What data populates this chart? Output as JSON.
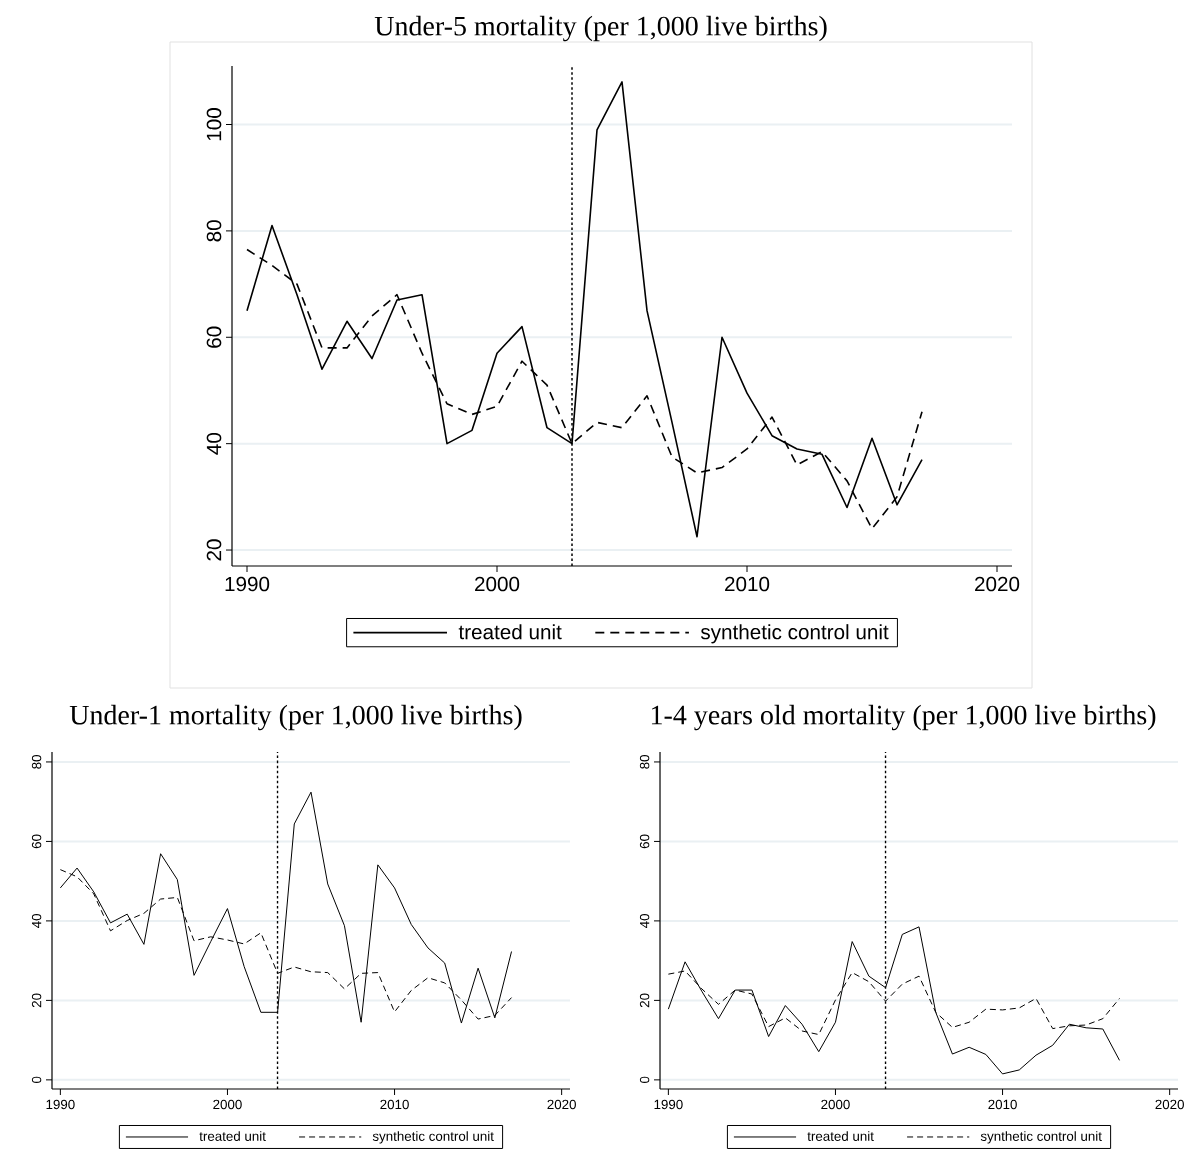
{
  "chart_data": [
    {
      "type": "line",
      "title": "Under-5 mortality (per 1,000 live births)",
      "x": [
        1990,
        1991,
        1992,
        1993,
        1994,
        1995,
        1996,
        1997,
        1998,
        1999,
        2000,
        2001,
        2002,
        2003,
        2004,
        2005,
        2006,
        2007,
        2008,
        2009,
        2010,
        2011,
        2012,
        2013,
        2014,
        2015,
        2016,
        2017
      ],
      "series": [
        {
          "name": "treated unit",
          "color": "#000000",
          "line_style": "solid",
          "values": [
            65,
            81,
            68,
            54,
            63,
            56,
            67,
            68,
            40,
            42.5,
            57,
            62,
            43,
            40,
            99,
            108,
            65,
            44,
            22.5,
            60,
            49.5,
            41.5,
            39,
            38,
            28,
            41,
            28.5,
            37
          ]
        },
        {
          "name": "synthetic control unit",
          "color": "#000000",
          "line_style": "dashed",
          "values": [
            76.5,
            73.5,
            70,
            58,
            58,
            64,
            68,
            57,
            47.5,
            45.5,
            47,
            55.5,
            51,
            40,
            44,
            43,
            49,
            37.5,
            34.5,
            35.5,
            39,
            45,
            36,
            38.5,
            33,
            24,
            30,
            46
          ]
        }
      ],
      "xlim": [
        1989.4,
        2020.6
      ],
      "ylim": [
        17,
        111
      ],
      "xticks": [
        1990,
        2000,
        2010,
        2020
      ],
      "yticks": [
        20,
        40,
        60,
        80,
        100
      ],
      "ref_lines": [
        {
          "axis": "x",
          "value": 2003,
          "line_style": "dotted",
          "color": "#000000"
        }
      ],
      "grid": "y",
      "legend": "bottom"
    },
    {
      "type": "line",
      "title": "Under-1 mortality (per 1,000 live births)",
      "x": [
        1990,
        1991,
        1992,
        1993,
        1994,
        1995,
        1996,
        1997,
        1998,
        1999,
        2000,
        2001,
        2002,
        2003,
        2004,
        2005,
        2006,
        2007,
        2008,
        2009,
        2010,
        2011,
        2012,
        2013,
        2014,
        2015,
        2016,
        2017
      ],
      "series": [
        {
          "name": "treated unit",
          "color": "#000000",
          "line_style": "solid",
          "values": [
            48.3,
            53.3,
            47.3,
            39.5,
            41.7,
            34.1,
            56.9,
            50.4,
            26.3,
            34.8,
            43.1,
            28.5,
            17,
            17,
            64.4,
            72.4,
            49.3,
            38.8,
            14.5,
            54.1,
            48.3,
            39.1,
            33.2,
            29.4,
            14.3,
            28.1,
            15.6,
            32.3
          ]
        },
        {
          "name": "synthetic control unit",
          "color": "#000000",
          "line_style": "dashed",
          "values": [
            52.9,
            51.1,
            46.8,
            37.5,
            40.1,
            41.9,
            45.5,
            45.9,
            35,
            36,
            35.2,
            34.2,
            37,
            26.8,
            28.4,
            27.2,
            27,
            22.9,
            26.8,
            27,
            17.1,
            22.5,
            25.7,
            24.4,
            20.1,
            15.3,
            16.2,
            20.7
          ]
        }
      ],
      "xlim": [
        1989.5,
        2020.5
      ],
      "ylim": [
        -2.3,
        82.5
      ],
      "xticks": [
        1990,
        2000,
        2010,
        2020
      ],
      "yticks": [
        0,
        20,
        40,
        60,
        80
      ],
      "ref_lines": [
        {
          "axis": "x",
          "value": 2003,
          "line_style": "dotted",
          "color": "#000000"
        }
      ],
      "grid": "y",
      "legend": "bottom"
    },
    {
      "type": "line",
      "title": "1-4 years old mortality (per 1,000 live births)",
      "x": [
        1990,
        1991,
        1992,
        1993,
        1994,
        1995,
        1996,
        1997,
        1998,
        1999,
        2000,
        2001,
        2002,
        2003,
        2004,
        2005,
        2006,
        2007,
        2008,
        2009,
        2010,
        2011,
        2012,
        2013,
        2014,
        2015,
        2016,
        2017
      ],
      "series": [
        {
          "name": "treated unit",
          "color": "#000000",
          "line_style": "solid",
          "values": [
            17.8,
            29.7,
            22.3,
            15.4,
            22.6,
            22.6,
            10.9,
            18.7,
            14,
            7.1,
            14.5,
            34.8,
            26.1,
            23.2,
            36.6,
            38.5,
            17,
            6.5,
            8.2,
            6.4,
            1.5,
            2.5,
            6.2,
            8.7,
            14,
            13.1,
            12.8,
            4.9
          ]
        },
        {
          "name": "synthetic control unit",
          "color": "#000000",
          "line_style": "dashed",
          "values": [
            26.6,
            27.4,
            22.9,
            19,
            22.6,
            21.6,
            13.4,
            15.6,
            12.3,
            11.4,
            20.1,
            27,
            24.7,
            19.8,
            24.1,
            26.1,
            17,
            13.2,
            14.5,
            17.8,
            17.6,
            18.1,
            20.5,
            12.9,
            13.6,
            13.8,
            15.4,
            20.5
          ]
        }
      ],
      "xlim": [
        1989.5,
        2020.5
      ],
      "ylim": [
        -2.3,
        82.5
      ],
      "xticks": [
        1990,
        2000,
        2010,
        2020
      ],
      "yticks": [
        0,
        20,
        40,
        60,
        80
      ],
      "ref_lines": [
        {
          "axis": "x",
          "value": 2003,
          "line_style": "dotted",
          "color": "#000000"
        }
      ],
      "grid": "y",
      "legend": "bottom"
    }
  ]
}
